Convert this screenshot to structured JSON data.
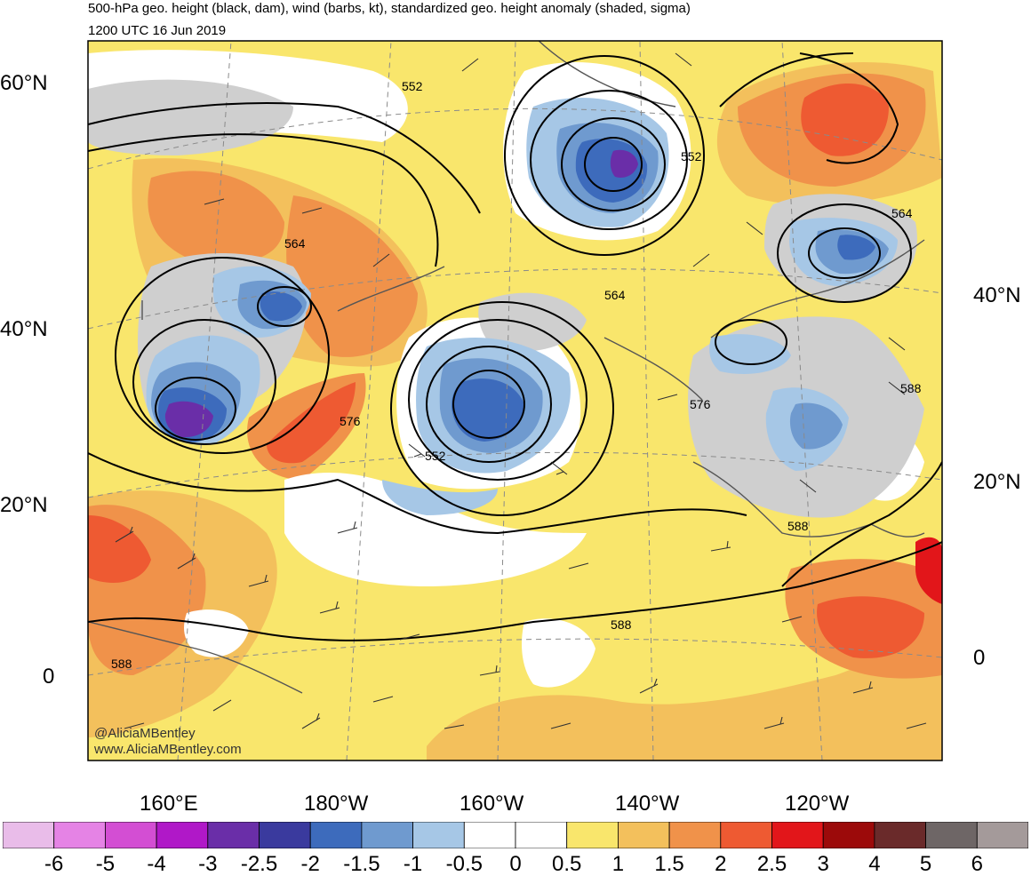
{
  "header": {
    "title": "500-hPa geo. height (black, dam), wind (barbs, kt), standardized geo. height anomaly (shaded, sigma)",
    "valid_time": "1200 UTC 16 Jun 2019"
  },
  "map": {
    "lat_labels_left": [
      "60°N",
      "40°N",
      "20°N",
      "0"
    ],
    "lat_labels_right": [
      "40°N",
      "20°N",
      "0"
    ],
    "lon_labels": [
      "160°E",
      "180°W",
      "160°W",
      "140°W",
      "120°W"
    ],
    "contour_labels": [
      "552",
      "552",
      "552",
      "564",
      "564",
      "564",
      "576",
      "576",
      "588",
      "588",
      "588",
      "588"
    ],
    "credit_twitter": "@AliciaMBentley",
    "credit_web": "www.AliciaMBentley.com"
  },
  "colorbar": {
    "colors": [
      "#e9bce9",
      "#e583e5",
      "#d34ed3",
      "#b018c8",
      "#6a2ea8",
      "#3a3a9e",
      "#3d6bbc",
      "#6f9acf",
      "#a6c7e6",
      "#ffffff",
      "#ffffff",
      "#f9e66c",
      "#f3c05c",
      "#f0924a",
      "#ee5a32",
      "#e2161a",
      "#9c0a0a",
      "#6a2a2a",
      "#6e6666",
      "#a49a9a"
    ],
    "labels": [
      "-6",
      "-5",
      "-4",
      "-3",
      "-2.5",
      "-2",
      "-1.5",
      "-1",
      "-0.5",
      "0",
      "0.5",
      "1",
      "1.5",
      "2",
      "2.5",
      "3",
      "4",
      "5",
      "6"
    ]
  }
}
